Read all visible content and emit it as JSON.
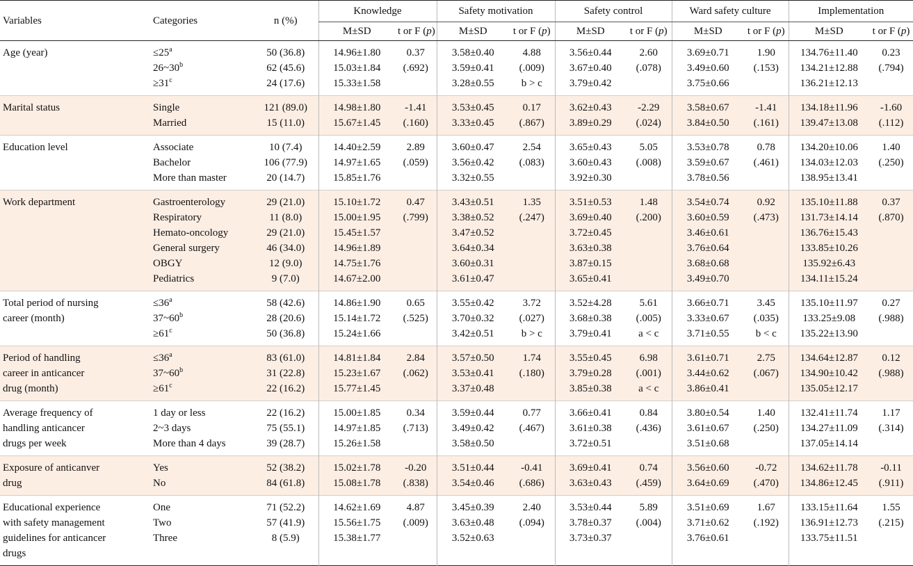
{
  "headers": {
    "variables": "Variables",
    "categories": "Categories",
    "n": "n (%)",
    "groups": [
      "Knowledge",
      "Safety motivation",
      "Safety control",
      "Ward safety culture",
      "Implementation"
    ],
    "msd": "M±SD",
    "stat": "t or F (p)"
  },
  "rows": [
    {
      "variable": [
        "Age (year)"
      ],
      "shade": false,
      "categories": [
        "≤25|a",
        "26~30|b",
        "≥31|c"
      ],
      "n": [
        "50 (36.8)",
        "62 (45.6)",
        "24 (17.6)"
      ],
      "knowledge_msd": [
        "14.96±1.80",
        "15.03±1.84",
        "15.33±1.58"
      ],
      "knowledge_stat": [
        "0.37",
        "(.692)"
      ],
      "motivation_msd": [
        "3.58±0.40",
        "3.59±0.41",
        "3.28±0.55"
      ],
      "motivation_stat": [
        "4.88",
        "(.009)",
        "b > c"
      ],
      "control_msd": [
        "3.56±0.44",
        "3.67±0.40",
        "3.79±0.42"
      ],
      "control_stat": [
        "2.60",
        "(.078)"
      ],
      "culture_msd": [
        "3.69±0.71",
        "3.49±0.60",
        "3.75±0.66"
      ],
      "culture_stat": [
        "1.90",
        "(.153)"
      ],
      "impl_msd": [
        "134.76±11.40",
        "134.21±12.88",
        "136.21±12.13"
      ],
      "impl_stat": [
        "0.23",
        "(.794)"
      ]
    },
    {
      "variable": [
        "Marital status"
      ],
      "shade": true,
      "categories": [
        "Single",
        "Married"
      ],
      "n": [
        "121 (89.0)",
        "15 (11.0)"
      ],
      "knowledge_msd": [
        "14.98±1.80",
        "15.67±1.45"
      ],
      "knowledge_stat": [
        "-1.41",
        "(.160)"
      ],
      "motivation_msd": [
        "3.53±0.45",
        "3.33±0.45"
      ],
      "motivation_stat": [
        "0.17",
        "(.867)"
      ],
      "control_msd": [
        "3.62±0.43",
        "3.89±0.29"
      ],
      "control_stat": [
        "-2.29",
        "(.024)"
      ],
      "culture_msd": [
        "3.58±0.67",
        "3.84±0.50"
      ],
      "culture_stat": [
        "-1.41",
        "(.161)"
      ],
      "impl_msd": [
        "134.18±11.96",
        "139.47±13.08"
      ],
      "impl_stat": [
        "-1.60",
        "(.112)"
      ]
    },
    {
      "variable": [
        "Education level"
      ],
      "shade": false,
      "categories": [
        "Associate",
        "Bachelor",
        "More than master"
      ],
      "n": [
        "10 (7.4)",
        "106 (77.9)",
        "20 (14.7)"
      ],
      "knowledge_msd": [
        "14.40±2.59",
        "14.97±1.65",
        "15.85±1.76"
      ],
      "knowledge_stat": [
        "2.89",
        "(.059)"
      ],
      "motivation_msd": [
        "3.60±0.47",
        "3.56±0.42",
        "3.32±0.55"
      ],
      "motivation_stat": [
        "2.54",
        "(.083)"
      ],
      "control_msd": [
        "3.65±0.43",
        "3.60±0.43",
        "3.92±0.30"
      ],
      "control_stat": [
        "5.05",
        "(.008)"
      ],
      "culture_msd": [
        "3.53±0.78",
        "3.59±0.67",
        "3.78±0.56"
      ],
      "culture_stat": [
        "0.78",
        "(.461)"
      ],
      "impl_msd": [
        "134.20±10.06",
        "134.03±12.03",
        "138.95±13.41"
      ],
      "impl_stat": [
        "1.40",
        "(.250)"
      ]
    },
    {
      "variable": [
        "Work department"
      ],
      "shade": true,
      "categories": [
        "Gastroenterology",
        "Respiratory",
        "Hemato-oncology",
        "General surgery",
        "OBGY",
        "Pediatrics"
      ],
      "n": [
        "29 (21.0)",
        "11 (8.0)",
        "29 (21.0)",
        "46 (34.0)",
        "12 (9.0)",
        "9 (7.0)"
      ],
      "knowledge_msd": [
        "15.10±1.72",
        "15.00±1.95",
        "15.45±1.57",
        "14.96±1.89",
        "14.75±1.76",
        "14.67±2.00"
      ],
      "knowledge_stat": [
        "0.47",
        "(.799)"
      ],
      "motivation_msd": [
        "3.43±0.51",
        "3.38±0.52",
        "3.47±0.52",
        "3.64±0.34",
        "3.60±0.31",
        "3.61±0.47"
      ],
      "motivation_stat": [
        "1.35",
        "(.247)"
      ],
      "control_msd": [
        "3.51±0.53",
        "3.69±0.40",
        "3.72±0.45",
        "3.63±0.38",
        "3.87±0.15",
        "3.65±0.41"
      ],
      "control_stat": [
        "1.48",
        "(.200)"
      ],
      "culture_msd": [
        "3.54±0.74",
        "3.60±0.59",
        "3.46±0.61",
        "3.76±0.64",
        "3.68±0.68",
        "3.49±0.70"
      ],
      "culture_stat": [
        "0.92",
        "(.473)"
      ],
      "impl_msd": [
        "135.10±11.88",
        "131.73±14.14",
        "136.76±15.43",
        "133.85±10.26",
        "135.92±6.43",
        "134.11±15.24"
      ],
      "impl_stat": [
        "0.37",
        "(.870)"
      ]
    },
    {
      "variable": [
        "Total period of nursing",
        "career (month)"
      ],
      "shade": false,
      "categories": [
        "≤36|a",
        "37~60|b",
        "≥61|c"
      ],
      "n": [
        "58 (42.6)",
        "28 (20.6)",
        "50 (36.8)"
      ],
      "knowledge_msd": [
        "14.86±1.90",
        "15.14±1.72",
        "15.24±1.66"
      ],
      "knowledge_stat": [
        "0.65",
        "(.525)"
      ],
      "motivation_msd": [
        "3.55±0.42",
        "3.70±0.32",
        "3.42±0.51"
      ],
      "motivation_stat": [
        "3.72",
        "(.027)",
        "b > c"
      ],
      "control_msd": [
        "3.52±4.28",
        "3.68±0.38",
        "3.79±0.41"
      ],
      "control_stat": [
        "5.61",
        "(.005)",
        "a < c"
      ],
      "culture_msd": [
        "3.66±0.71",
        "3.33±0.67",
        "3.71±0.55"
      ],
      "culture_stat": [
        "3.45",
        "(.035)",
        "b < c"
      ],
      "impl_msd": [
        "135.10±11.97",
        "133.25±9.08",
        "135.22±13.90"
      ],
      "impl_stat": [
        "0.27",
        "(.988)"
      ]
    },
    {
      "variable": [
        "Period of handling",
        "career in anticancer",
        "drug (month)"
      ],
      "shade": true,
      "categories": [
        "≤36|a",
        "37~60|b",
        "≥61|c"
      ],
      "n": [
        "83 (61.0)",
        "31 (22.8)",
        "22 (16.2)"
      ],
      "knowledge_msd": [
        "14.81±1.84",
        "15.23±1.67",
        "15.77±1.45"
      ],
      "knowledge_stat": [
        "2.84",
        "(.062)"
      ],
      "motivation_msd": [
        "3.57±0.50",
        "3.53±0.41",
        "3.37±0.48"
      ],
      "motivation_stat": [
        "1.74",
        "(.180)"
      ],
      "control_msd": [
        "3.55±0.45",
        "3.79±0.28",
        "3.85±0.38"
      ],
      "control_stat": [
        "6.98",
        "(.001)",
        "a < c"
      ],
      "culture_msd": [
        "3.61±0.71",
        "3.44±0.62",
        "3.86±0.41"
      ],
      "culture_stat": [
        "2.75",
        "(.067)"
      ],
      "impl_msd": [
        "134.64±12.87",
        "134.90±10.42",
        "135.05±12.17"
      ],
      "impl_stat": [
        "0.12",
        "(.988)"
      ]
    },
    {
      "variable": [
        "Average frequency of",
        "handling anticancer",
        "drugs per week"
      ],
      "shade": false,
      "categories": [
        "1 day or less",
        "2~3 days",
        "More than 4 days"
      ],
      "n": [
        "22 (16.2)",
        "75 (55.1)",
        "39 (28.7)"
      ],
      "knowledge_msd": [
        "15.00±1.85",
        "14.97±1.85",
        "15.26±1.58"
      ],
      "knowledge_stat": [
        "0.34",
        "(.713)"
      ],
      "motivation_msd": [
        "3.59±0.44",
        "3.49±0.42",
        "3.58±0.50"
      ],
      "motivation_stat": [
        "0.77",
        "(.467)"
      ],
      "control_msd": [
        "3.66±0.41",
        "3.61±0.38",
        "3.72±0.51"
      ],
      "control_stat": [
        "0.84",
        "(.436)"
      ],
      "culture_msd": [
        "3.80±0.54",
        "3.61±0.67",
        "3.51±0.68"
      ],
      "culture_stat": [
        "1.40",
        "(.250)"
      ],
      "impl_msd": [
        "132.41±11.74",
        "134.27±11.09",
        "137.05±14.14"
      ],
      "impl_stat": [
        "1.17",
        "(.314)"
      ]
    },
    {
      "variable": [
        "Exposure of anticanver",
        "drug"
      ],
      "shade": true,
      "categories": [
        "Yes",
        "No"
      ],
      "n": [
        "52 (38.2)",
        "84 (61.8)"
      ],
      "knowledge_msd": [
        "15.02±1.78",
        "15.08±1.78"
      ],
      "knowledge_stat": [
        "-0.20",
        "(.838)"
      ],
      "motivation_msd": [
        "3.51±0.44",
        "3.54±0.46"
      ],
      "motivation_stat": [
        "-0.41",
        "(.686)"
      ],
      "control_msd": [
        "3.69±0.41",
        "3.63±0.43"
      ],
      "control_stat": [
        "0.74",
        "(.459)"
      ],
      "culture_msd": [
        "3.56±0.60",
        "3.64±0.69"
      ],
      "culture_stat": [
        "-0.72",
        "(.470)"
      ],
      "impl_msd": [
        "134.62±11.78",
        "134.86±12.45"
      ],
      "impl_stat": [
        "-0.11",
        "(.911)"
      ]
    },
    {
      "variable": [
        "Educational experience",
        "with safety management",
        "guidelines for anticancer",
        "drugs"
      ],
      "shade": false,
      "categories": [
        "One",
        "Two",
        "Three"
      ],
      "n": [
        "71 (52.2)",
        "57 (41.9)",
        "8 (5.9)"
      ],
      "knowledge_msd": [
        "14.62±1.69",
        "15.56±1.75",
        "15.38±1.77"
      ],
      "knowledge_stat": [
        "4.87",
        "(.009)"
      ],
      "motivation_msd": [
        "3.45±0.39",
        "3.63±0.48",
        "3.52±0.63"
      ],
      "motivation_stat": [
        "2.40",
        "(.094)"
      ],
      "control_msd": [
        "3.53±0.44",
        "3.78±0.37",
        "3.73±0.37"
      ],
      "control_stat": [
        "5.89",
        "(.004)"
      ],
      "culture_msd": [
        "3.51±0.69",
        "3.71±0.62",
        "3.76±0.61"
      ],
      "culture_stat": [
        "1.67",
        "(.192)"
      ],
      "impl_msd": [
        "133.15±11.64",
        "136.91±12.73",
        "133.75±11.51"
      ],
      "impl_stat": [
        "1.55",
        "(.215)"
      ]
    }
  ]
}
